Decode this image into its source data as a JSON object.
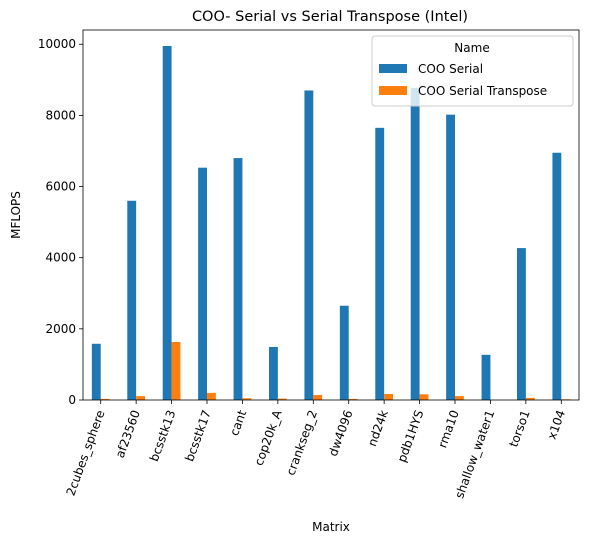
{
  "chart_data": {
    "type": "bar",
    "title": "COO- Serial vs Serial Transpose (Intel)",
    "xlabel": "Matrix",
    "ylabel": "MFLOPS",
    "ylim": [
      0,
      10400
    ],
    "yticks": [
      0,
      2000,
      4000,
      6000,
      8000,
      10000
    ],
    "grid": false,
    "legend": {
      "title": "Name",
      "placement": "top-right"
    },
    "categories": [
      "2cubes_sphere",
      "af23560",
      "bcsstk13",
      "bcsstk17",
      "cant",
      "cop20k_A",
      "crankseg_2",
      "dw4096",
      "nd24k",
      "pdb1HYS",
      "rma10",
      "shallow_water1",
      "torso1",
      "x104"
    ],
    "series": [
      {
        "name": "COO Serial",
        "color": "#1f77b4",
        "values": [
          1580,
          5600,
          9950,
          6530,
          6800,
          1490,
          8700,
          2650,
          7650,
          8770,
          8020,
          1270,
          4270,
          6950
        ]
      },
      {
        "name": "COO Serial Transpose",
        "color": "#ff7f0e",
        "values": [
          30,
          110,
          1630,
          200,
          50,
          40,
          140,
          30,
          170,
          160,
          110,
          0,
          60,
          20
        ]
      }
    ]
  }
}
